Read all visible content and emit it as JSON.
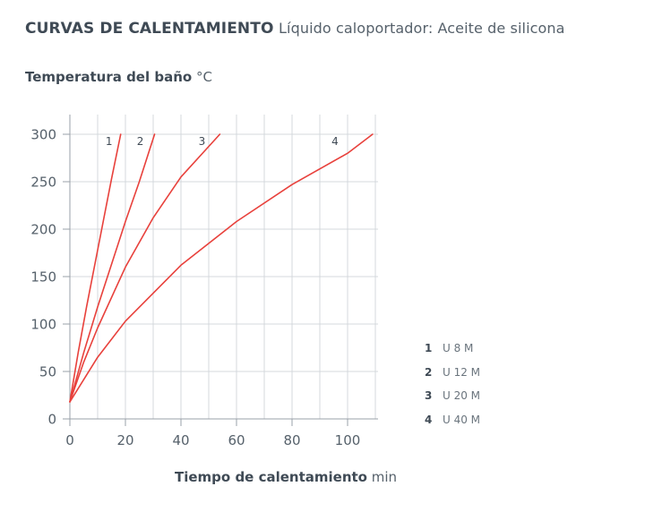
{
  "title": {
    "main": "CURVAS DE CALENTAMIENTO",
    "sub": "Líquido caloportador: Aceite de silicona"
  },
  "chart_data": {
    "type": "line",
    "ylabel": "Temperatura del baño",
    "yunit": "°C",
    "xlabel": "Tiempo de calentamiento",
    "xunit": "min",
    "xlim": [
      0,
      110
    ],
    "ylim": [
      0,
      320
    ],
    "xticks": [
      0,
      20,
      40,
      60,
      80,
      100
    ],
    "yticks": [
      0,
      50,
      100,
      150,
      200,
      250,
      300
    ],
    "grid": true,
    "line_color": "#e8413c",
    "series": [
      {
        "label": "1",
        "x": [
          0,
          3,
          6,
          9,
          12,
          15,
          18.3
        ],
        "y": [
          18,
          70,
          118,
          163,
          208,
          253,
          300
        ]
      },
      {
        "label": "2",
        "x": [
          0,
          5,
          10,
          15,
          20,
          25,
          30.5
        ],
        "y": [
          18,
          70,
          118,
          163,
          208,
          250,
          300
        ]
      },
      {
        "label": "3",
        "x": [
          0,
          5,
          10,
          20,
          30,
          40,
          54
        ],
        "y": [
          18,
          60,
          96,
          160,
          212,
          255,
          300
        ]
      },
      {
        "label": "4",
        "x": [
          0,
          10,
          20,
          40,
          60,
          80,
          100,
          109
        ],
        "y": [
          18,
          65,
          103,
          162,
          208,
          247,
          280,
          300
        ]
      }
    ],
    "legend": [
      {
        "num": "1",
        "name": "U 8 M"
      },
      {
        "num": "2",
        "name": "U 12 M"
      },
      {
        "num": "3",
        "name": "U 20 M"
      },
      {
        "num": "4",
        "name": "U 40 M"
      }
    ]
  }
}
